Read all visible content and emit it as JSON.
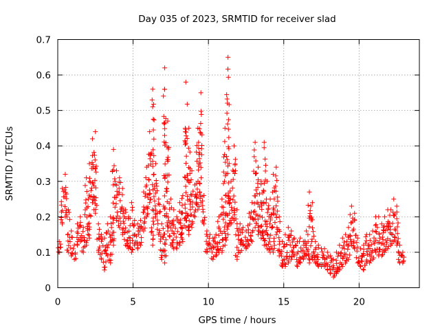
{
  "chart_data": {
    "type": "scatter",
    "title": "Day 035 of 2023, SRMTID for receiver slad",
    "xlabel": "GPS time / hours",
    "ylabel": "SRMTID / TECUs",
    "xlim": [
      0,
      24
    ],
    "ylim": [
      0,
      0.7
    ],
    "xticks": [
      "0",
      "5",
      "10",
      "15",
      "20"
    ],
    "yticks": [
      "0",
      "0.1",
      "0.2",
      "0.3",
      "0.4",
      "0.5",
      "0.6",
      "0.7"
    ],
    "grid": true,
    "marker": "plus",
    "color": "#ff0000",
    "series": [
      {
        "name": "SRMTID",
        "x": [
          0,
          0.2,
          0.4,
          0.6,
          0.8,
          1,
          1.2,
          1.4,
          1.6,
          1.8,
          2,
          2.2,
          2.4,
          2.6,
          2.8,
          3,
          3.2,
          3.4,
          3.6,
          3.8,
          4,
          4.2,
          4.4,
          4.6,
          4.8,
          5,
          5.2,
          5.4,
          5.6,
          5.8,
          6,
          6.2,
          6.4,
          6.6,
          6.8,
          7,
          7.2,
          7.4,
          7.6,
          7.8,
          8,
          8.2,
          8.4,
          8.6,
          8.8,
          9,
          9.2,
          9.4,
          9.6,
          9.8,
          10,
          10.2,
          10.4,
          10.6,
          10.8,
          11,
          11.2,
          11.4,
          11.6,
          11.8,
          12,
          12.2,
          12.4,
          12.6,
          12.8,
          13,
          13.2,
          13.4,
          13.6,
          13.8,
          14,
          14.2,
          14.4,
          14.6,
          14.8,
          15,
          15.2,
          15.4,
          15.6,
          15.8,
          16,
          16.2,
          16.4,
          16.6,
          16.8,
          17,
          17.2,
          17.4,
          17.6,
          17.8,
          18,
          18.2,
          18.4,
          18.6,
          18.8,
          19,
          19.2,
          19.4,
          19.6,
          19.8,
          20,
          20.2,
          20.4,
          20.6,
          20.8,
          21,
          21.2,
          21.4,
          21.6,
          21.8,
          22,
          22.2,
          22.4,
          22.6,
          22.8
        ],
        "low": [
          0.1,
          0.18,
          0.2,
          0.1,
          0.09,
          0.08,
          0.12,
          0.13,
          0.1,
          0.12,
          0.14,
          0.24,
          0.21,
          0.1,
          0.08,
          0.05,
          0.09,
          0.07,
          0.12,
          0.19,
          0.17,
          0.15,
          0.12,
          0.11,
          0.1,
          0.12,
          0.11,
          0.12,
          0.16,
          0.2,
          0.24,
          0.12,
          0.2,
          0.15,
          0.08,
          0.07,
          0.16,
          0.12,
          0.11,
          0.11,
          0.12,
          0.13,
          0.17,
          0.15,
          0.17,
          0.2,
          0.22,
          0.24,
          0.18,
          0.1,
          0.11,
          0.08,
          0.09,
          0.1,
          0.1,
          0.12,
          0.15,
          0.18,
          0.19,
          0.08,
          0.1,
          0.12,
          0.11,
          0.12,
          0.13,
          0.17,
          0.15,
          0.14,
          0.12,
          0.11,
          0.1,
          0.1,
          0.15,
          0.09,
          0.06,
          0.06,
          0.07,
          0.08,
          0.09,
          0.06,
          0.07,
          0.08,
          0.09,
          0.07,
          0.08,
          0.07,
          0.06,
          0.06,
          0.06,
          0.05,
          0.04,
          0.03,
          0.04,
          0.05,
          0.06,
          0.07,
          0.08,
          0.12,
          0.11,
          0.07,
          0.06,
          0.05,
          0.07,
          0.07,
          0.08,
          0.1,
          0.09,
          0.09,
          0.1,
          0.11,
          0.12,
          0.13,
          0.12,
          0.07,
          0.07
        ],
        "high": [
          0.13,
          0.28,
          0.32,
          0.22,
          0.16,
          0.12,
          0.18,
          0.2,
          0.17,
          0.31,
          0.35,
          0.42,
          0.44,
          0.18,
          0.15,
          0.14,
          0.18,
          0.2,
          0.39,
          0.33,
          0.31,
          0.28,
          0.22,
          0.2,
          0.24,
          0.19,
          0.18,
          0.19,
          0.27,
          0.34,
          0.44,
          0.56,
          0.35,
          0.25,
          0.18,
          0.62,
          0.47,
          0.25,
          0.22,
          0.2,
          0.24,
          0.26,
          0.58,
          0.45,
          0.33,
          0.29,
          0.45,
          0.55,
          0.26,
          0.16,
          0.15,
          0.14,
          0.15,
          0.2,
          0.25,
          0.45,
          0.65,
          0.3,
          0.4,
          0.22,
          0.18,
          0.17,
          0.16,
          0.21,
          0.24,
          0.41,
          0.34,
          0.3,
          0.41,
          0.3,
          0.25,
          0.32,
          0.34,
          0.2,
          0.13,
          0.15,
          0.17,
          0.16,
          0.14,
          0.13,
          0.14,
          0.13,
          0.16,
          0.27,
          0.24,
          0.13,
          0.12,
          0.11,
          0.11,
          0.1,
          0.09,
          0.08,
          0.1,
          0.12,
          0.14,
          0.15,
          0.17,
          0.23,
          0.21,
          0.14,
          0.11,
          0.12,
          0.15,
          0.15,
          0.16,
          0.2,
          0.2,
          0.18,
          0.2,
          0.22,
          0.22,
          0.25,
          0.23,
          0.12,
          0.1
        ]
      }
    ]
  }
}
